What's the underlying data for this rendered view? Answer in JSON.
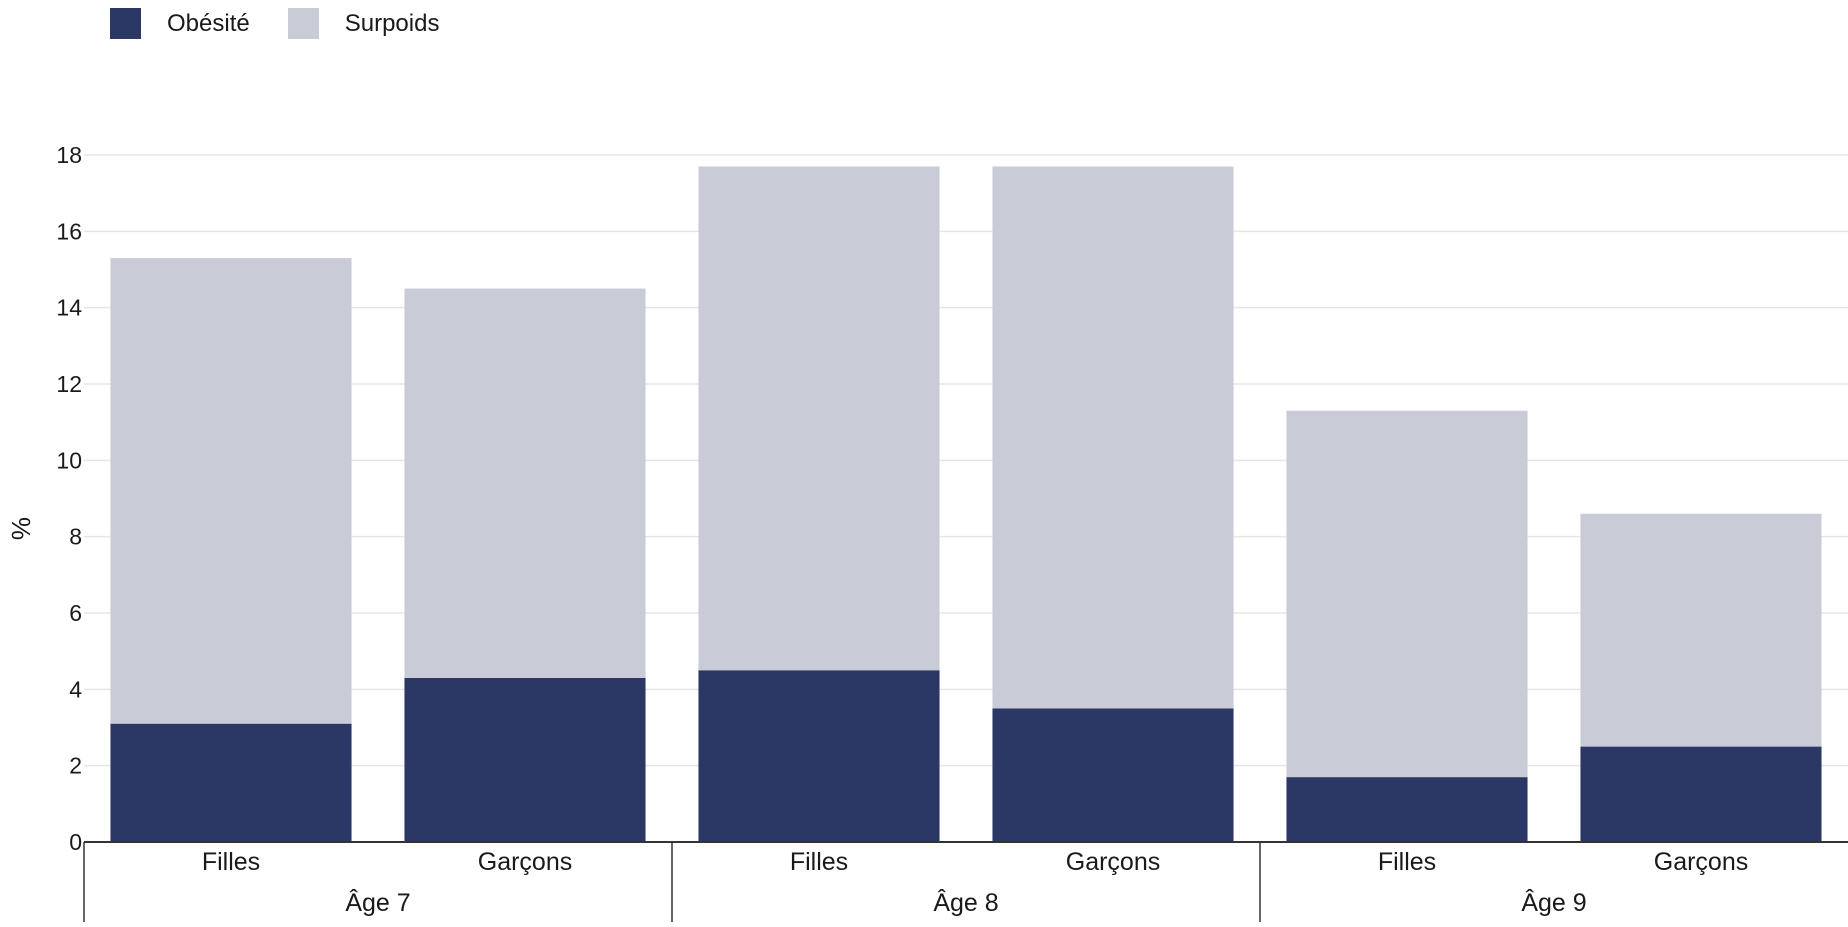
{
  "chart_data": {
    "type": "bar",
    "stacked": true,
    "groups": [
      {
        "label": "Âge 7",
        "categories": [
          "Filles",
          "Garçons"
        ]
      },
      {
        "label": "Âge 8",
        "categories": [
          "Filles",
          "Garçons"
        ]
      },
      {
        "label": "Âge 9",
        "categories": [
          "Filles",
          "Garçons"
        ]
      }
    ],
    "series": [
      {
        "name": "Obésité",
        "color": "#2b3764",
        "values": [
          3.1,
          4.3,
          4.5,
          3.5,
          1.7,
          2.5
        ]
      },
      {
        "name": "Surpoids",
        "color": "#c9cbd7",
        "values": [
          12.2,
          10.2,
          13.2,
          14.2,
          9.6,
          6.1
        ]
      }
    ],
    "ylabel": "%",
    "ylim": [
      0,
      18
    ],
    "yticks": [
      0,
      2,
      4,
      6,
      8,
      10,
      12,
      14,
      16,
      18
    ],
    "grid": true,
    "legend_position": "top-left"
  }
}
